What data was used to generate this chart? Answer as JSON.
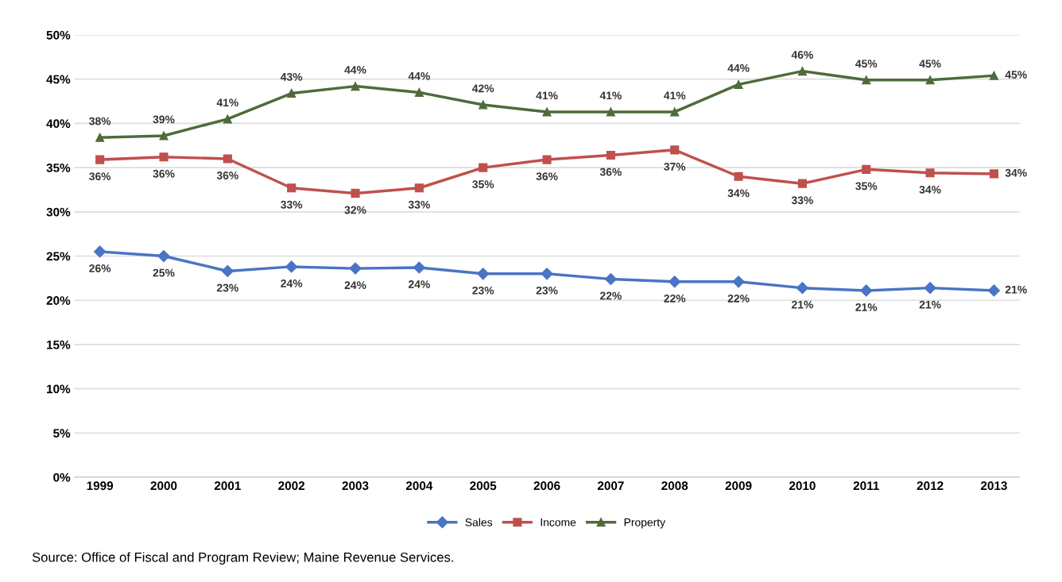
{
  "chart_data": {
    "type": "line",
    "categories": [
      "1999",
      "2000",
      "2001",
      "2002",
      "2003",
      "2004",
      "2005",
      "2006",
      "2007",
      "2008",
      "2009",
      "2010",
      "2011",
      "2012",
      "2013"
    ],
    "series": [
      {
        "name": "Sales",
        "color": "#4a74c4",
        "marker": "diamond",
        "values": [
          25.5,
          25.0,
          23.3,
          23.8,
          23.6,
          23.7,
          23.0,
          23.0,
          22.4,
          22.1,
          22.1,
          21.4,
          21.1,
          21.4,
          21.1
        ],
        "value_labels": [
          "26%",
          "25%",
          "23%",
          "24%",
          "24%",
          "24%",
          "23%",
          "23%",
          "22%",
          "22%",
          "22%",
          "21%",
          "21%",
          "21%",
          "21%"
        ]
      },
      {
        "name": "Income",
        "color": "#c0504d",
        "marker": "square",
        "values": [
          35.9,
          36.2,
          36.0,
          32.7,
          32.1,
          32.7,
          35.0,
          35.9,
          36.4,
          37.0,
          34.0,
          33.2,
          34.8,
          34.4,
          34.3
        ],
        "value_labels": [
          "36%",
          "36%",
          "36%",
          "33%",
          "32%",
          "33%",
          "35%",
          "36%",
          "36%",
          "37%",
          "34%",
          "33%",
          "35%",
          "34%",
          "34%"
        ]
      },
      {
        "name": "Property",
        "color": "#4f6b3c",
        "marker": "triangle",
        "values": [
          38.4,
          38.6,
          40.5,
          43.4,
          44.2,
          43.5,
          42.1,
          41.3,
          41.3,
          41.3,
          44.4,
          45.9,
          44.9,
          44.9,
          45.4
        ],
        "value_labels": [
          "38%",
          "39%",
          "41%",
          "43%",
          "44%",
          "44%",
          "42%",
          "41%",
          "41%",
          "41%",
          "44%",
          "46%",
          "45%",
          "45%",
          "45%"
        ]
      }
    ],
    "ylim": [
      0,
      50
    ],
    "yticks": [
      {
        "value": 0,
        "label": "0%"
      },
      {
        "value": 5,
        "label": "5%"
      },
      {
        "value": 10,
        "label": "10%"
      },
      {
        "value": 15,
        "label": "15%"
      },
      {
        "value": 20,
        "label": "20%"
      },
      {
        "value": 25,
        "label": "25%"
      },
      {
        "value": 30,
        "label": "30%"
      },
      {
        "value": 35,
        "label": "35%"
      },
      {
        "value": 40,
        "label": "40%"
      },
      {
        "value": 45,
        "label": "45%"
      },
      {
        "value": 50,
        "label": "50%"
      }
    ],
    "grid": "y",
    "legend": "bottom",
    "line_style": "solid",
    "annotations": [
      "Source: Office of Fiscal and Program Review; Maine Revenue Services."
    ]
  }
}
